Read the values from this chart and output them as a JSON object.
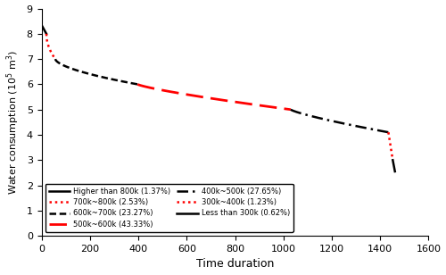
{
  "xlabel": "Time duration",
  "ylabel": "Water consumption (10$^5$ m$^3$)",
  "xlim": [
    0,
    1600
  ],
  "ylim": [
    0,
    9
  ],
  "yticks": [
    0,
    1,
    2,
    3,
    4,
    5,
    6,
    7,
    8,
    9
  ],
  "xticks": [
    0,
    200,
    400,
    600,
    800,
    1000,
    1200,
    1400,
    1600
  ],
  "total_days": 1461,
  "segments": [
    {
      "label": "Higher than 800k (1.37%)",
      "pct": 1.37,
      "ystart": 8.35,
      "yend": 8.0,
      "color": "black",
      "linestyle": "solid",
      "lw": 1.8,
      "power": 1.0
    },
    {
      "label": "700k~800k (2.53%)",
      "pct": 2.53,
      "ystart": 8.0,
      "yend": 7.0,
      "color": "red",
      "linestyle": "dotted",
      "lw": 1.8,
      "power": 0.5
    },
    {
      "label": "600k~700k (23.27%)",
      "pct": 23.27,
      "ystart": 7.0,
      "yend": 6.0,
      "color": "black",
      "linestyle": "dashed",
      "lw": 1.8,
      "power": 0.6
    },
    {
      "label": "500k~600k (43.33%)",
      "pct": 43.33,
      "ystart": 6.0,
      "yend": 5.0,
      "color": "red",
      "linestyle": "dashed",
      "lw": 2.0,
      "power": 0.8
    },
    {
      "label": "400k~500k (27.65%)",
      "pct": 27.65,
      "ystart": 5.0,
      "yend": 4.1,
      "color": "black",
      "linestyle": "dashdot",
      "lw": 1.8,
      "power": 0.8
    },
    {
      "label": "300k~400k (1.23%)",
      "pct": 1.23,
      "ystart": 4.1,
      "yend": 3.0,
      "color": "red",
      "linestyle": "dotted",
      "lw": 1.8,
      "power": 1.0
    },
    {
      "label": "Less than 300k (0.62%)",
      "pct": 0.62,
      "ystart": 3.0,
      "yend": 2.55,
      "color": "black",
      "linestyle": "solid",
      "lw": 1.8,
      "power": 1.0
    }
  ],
  "legend_col1": [
    {
      "label": "Higher than 800k (1.37%)",
      "color": "black",
      "linestyle": "solid",
      "lw": 1.8
    },
    {
      "label": "600k~700k (23.27%)",
      "color": "black",
      "linestyle": "dashed",
      "lw": 1.8
    },
    {
      "label": "400k~500k (27.65%)",
      "color": "black",
      "linestyle": "dashdot",
      "lw": 1.8
    },
    {
      "label": "Less than 300k (0.62%)",
      "color": "black",
      "linestyle": "solid",
      "lw": 1.8
    }
  ],
  "legend_col2": [
    {
      "label": "700k~800k (2.53%)",
      "color": "red",
      "linestyle": "dotted",
      "lw": 1.8
    },
    {
      "label": "500k~600k (43.33%)",
      "color": "red",
      "linestyle": "dashed",
      "lw": 2.0
    },
    {
      "label": "300k~400k (1.23%)",
      "color": "red",
      "linestyle": "dotted",
      "lw": 1.8
    }
  ]
}
